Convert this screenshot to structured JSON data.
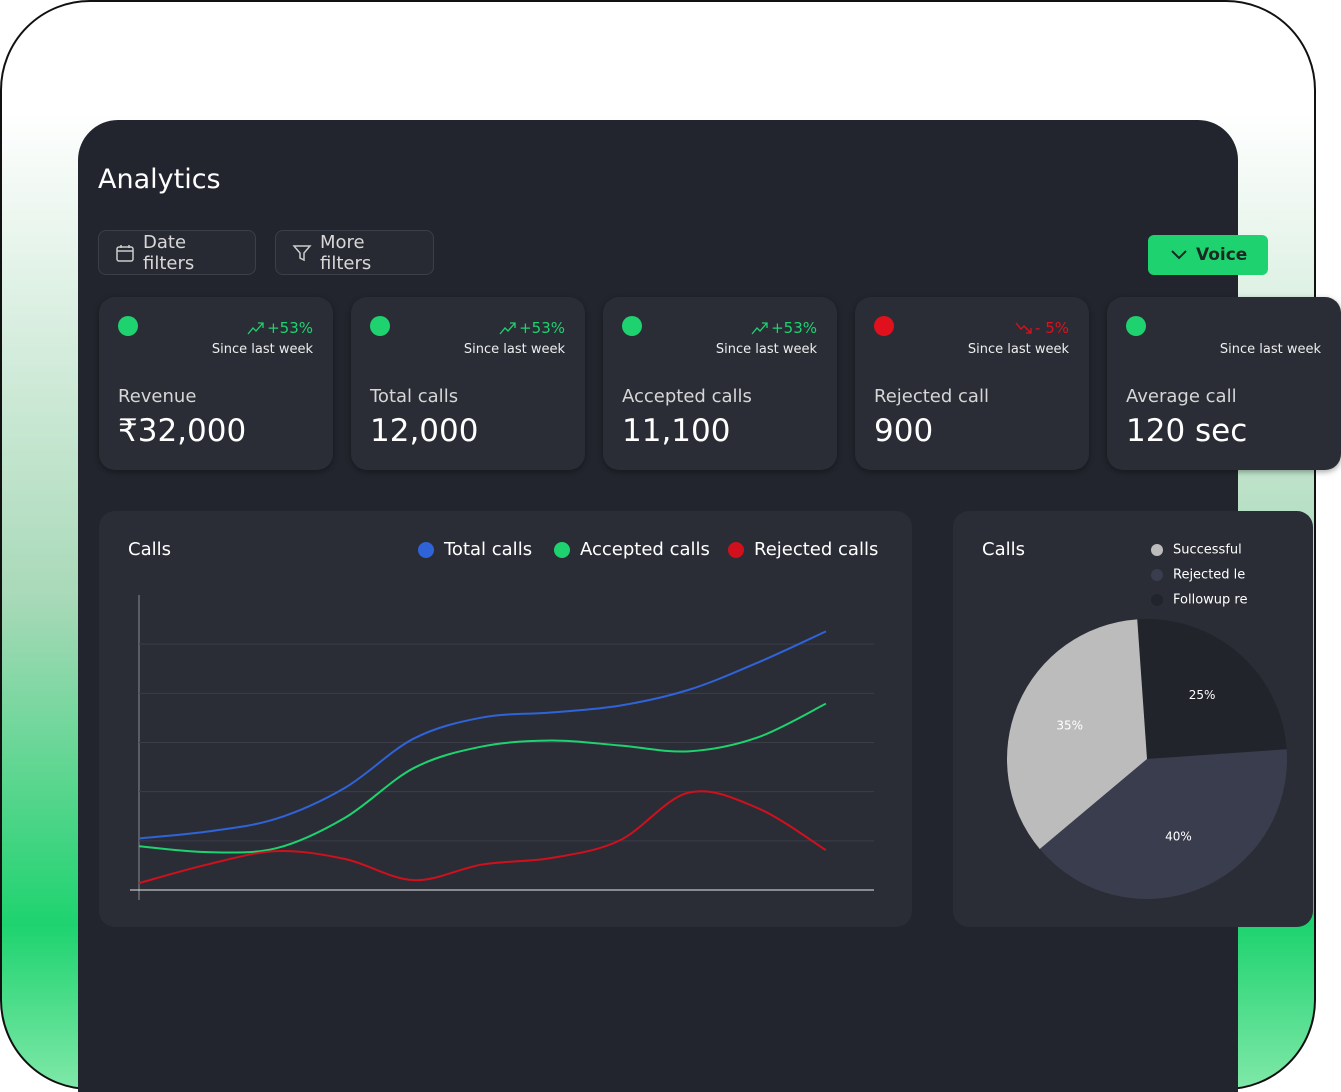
{
  "title": "Analytics",
  "filters": [
    "Date filters",
    "More filters"
  ],
  "button": "Voice",
  "cards": [
    {
      "dot_color": "#1ed36f",
      "change": "+53%",
      "change_color": "#1ed36f",
      "since": "Since last week",
      "label": "Revenue",
      "value": "₹32,000"
    },
    {
      "dot_color": "#1ed36f",
      "change": "+53%",
      "change_color": "#1ed36f",
      "since": "Since last week",
      "label": "Total calls",
      "value": "12,000"
    },
    {
      "dot_color": "#1ed36f",
      "change": "+53%",
      "change_color": "#1ed36f",
      "since": "Since last week",
      "label": "Accepted calls",
      "value": "11,100"
    },
    {
      "dot_color": "#e0101c",
      "change": "- 5%",
      "change_color": "#e0101c",
      "since": "Since last week",
      "label": "Rejected call",
      "value": "900"
    },
    {
      "dot_color": "#1ed36f",
      "since": "Since last week",
      "label": "Average call",
      "value": "120 sec"
    }
  ],
  "chart_data": [
    {
      "type": "line",
      "title": "Calls",
      "x": [
        0,
        1,
        2,
        3,
        4,
        5,
        6,
        7,
        8,
        9,
        10
      ],
      "xlim": [
        0,
        10.7
      ],
      "ylim": [
        0,
        6
      ],
      "yticks": [
        0,
        1,
        2,
        3,
        4,
        5
      ],
      "grid": true,
      "series": [
        {
          "name": "Total calls",
          "color": "#2f63d8",
          "values": [
            1.05,
            1.19,
            1.45,
            2.08,
            3.08,
            3.51,
            3.61,
            3.75,
            4.07,
            4.62,
            5.26
          ]
        },
        {
          "name": "Accepted calls",
          "color": "#1ed36f",
          "values": [
            0.89,
            0.77,
            0.85,
            1.47,
            2.48,
            2.92,
            3.04,
            2.94,
            2.82,
            3.1,
            3.79
          ]
        },
        {
          "name": "Rejected calls",
          "color": "#d0101c",
          "values": [
            0.14,
            0.52,
            0.79,
            0.63,
            0.2,
            0.52,
            0.65,
            1.01,
            1.98,
            1.67,
            0.81
          ]
        }
      ]
    },
    {
      "type": "pie",
      "title": "Calls",
      "categories": [
        "Successful",
        "Rejected le",
        "Followup re"
      ],
      "values": [
        35,
        40,
        25
      ],
      "value_labels": [
        "35%",
        "40%",
        "25%"
      ],
      "colors": [
        "#bcbcbc",
        "#3a3d4d",
        "#22242c"
      ]
    }
  ]
}
